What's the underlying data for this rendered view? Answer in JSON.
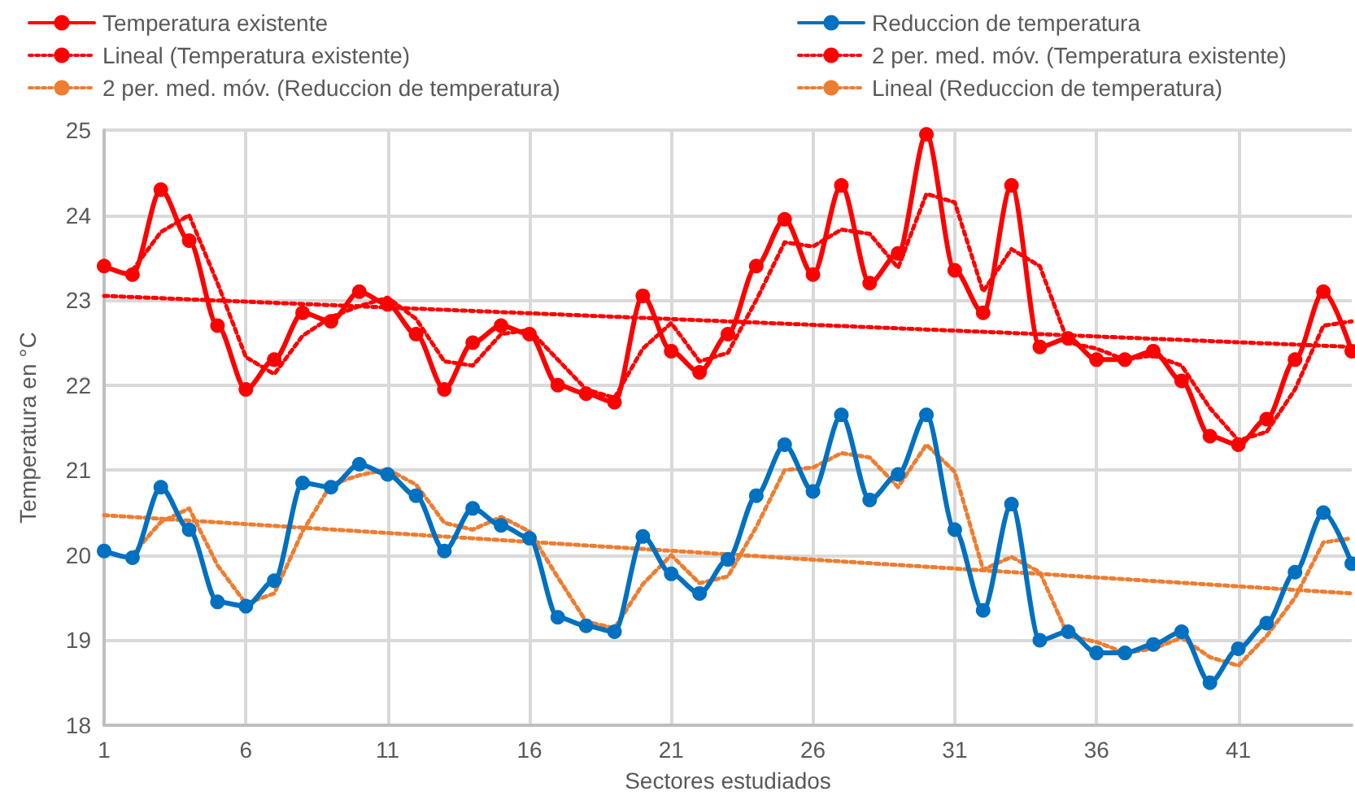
{
  "chart_data": {
    "type": "line",
    "xlabel": "Sectores estudiados",
    "ylabel": "Temperatura en °C",
    "xlim": [
      1,
      45
    ],
    "xticks": [
      1,
      6,
      11,
      16,
      21,
      26,
      31,
      36,
      41
    ],
    "ylim": [
      18,
      25
    ],
    "yticks": [
      18,
      19,
      20,
      21,
      22,
      23,
      24,
      25
    ],
    "grid": true,
    "legend": "top",
    "series": [
      {
        "name": "Temperatura existente",
        "color": "#ff0000",
        "marker": "circle",
        "line_style": "solid",
        "x": [
          1,
          2,
          3,
          4,
          5,
          6,
          7,
          8,
          9,
          10,
          11,
          12,
          13,
          14,
          15,
          16,
          17,
          18,
          19,
          20,
          21,
          22,
          23,
          24,
          25,
          26,
          27,
          28,
          29,
          30,
          31,
          32,
          33,
          34,
          35,
          36,
          37,
          38,
          39,
          40,
          41,
          42,
          43,
          44,
          45
        ],
        "values": [
          23.4,
          23.3,
          24.3,
          23.7,
          22.7,
          21.95,
          22.3,
          22.85,
          22.75,
          23.1,
          22.95,
          22.6,
          21.95,
          22.5,
          22.7,
          22.6,
          22.0,
          21.9,
          21.8,
          23.05,
          22.4,
          22.15,
          22.6,
          23.4,
          23.95,
          23.3,
          24.35,
          23.2,
          23.55,
          24.95,
          23.35,
          22.85,
          24.35,
          22.45,
          22.55,
          22.3,
          22.3,
          22.4,
          22.05,
          21.4,
          21.3,
          21.6,
          22.3,
          23.1,
          22.4
        ]
      },
      {
        "name": "Reduccion de temperatura",
        "color": "#0070c0",
        "marker": "circle",
        "line_style": "solid",
        "x": [
          1,
          2,
          3,
          4,
          5,
          6,
          7,
          8,
          9,
          10,
          11,
          12,
          13,
          14,
          15,
          16,
          17,
          18,
          19,
          20,
          21,
          22,
          23,
          24,
          25,
          26,
          27,
          28,
          29,
          30,
          31,
          32,
          33,
          34,
          35,
          36,
          37,
          38,
          39,
          40,
          41,
          42,
          43,
          44,
          45
        ],
        "values": [
          20.05,
          19.97,
          20.8,
          20.3,
          19.45,
          19.4,
          19.7,
          20.85,
          20.8,
          21.07,
          20.95,
          20.7,
          20.05,
          20.55,
          20.35,
          20.2,
          19.27,
          19.17,
          19.1,
          20.22,
          19.78,
          19.55,
          19.95,
          20.7,
          21.3,
          20.75,
          21.65,
          20.65,
          20.95,
          21.65,
          20.3,
          19.35,
          20.6,
          19.0,
          19.1,
          18.85,
          18.85,
          18.95,
          19.1,
          18.5,
          18.9,
          19.2,
          19.8,
          20.5,
          19.9
        ]
      },
      {
        "name": "Lineal (Temperatura existente)",
        "color": "#ff0000",
        "marker": "none",
        "line_style": "dotted",
        "x": [
          1,
          45
        ],
        "values": [
          23.05,
          22.45
        ]
      },
      {
        "name": "2 per. med. móv. (Temperatura existente)",
        "color": "#ff0000",
        "marker": "none",
        "line_style": "dotted",
        "x": [
          2,
          3,
          4,
          5,
          6,
          7,
          8,
          9,
          10,
          11,
          12,
          13,
          14,
          15,
          16,
          17,
          18,
          19,
          20,
          21,
          22,
          23,
          24,
          25,
          26,
          27,
          28,
          29,
          30,
          31,
          32,
          33,
          34,
          35,
          36,
          37,
          38,
          39,
          40,
          41,
          42,
          43,
          44,
          45
        ],
        "values": [
          23.35,
          23.8,
          24.0,
          23.2,
          22.33,
          22.13,
          22.58,
          22.8,
          22.93,
          23.03,
          22.78,
          22.28,
          22.23,
          22.6,
          22.65,
          22.3,
          21.95,
          21.85,
          22.43,
          22.73,
          22.28,
          22.38,
          23.0,
          23.68,
          23.63,
          23.83,
          23.78,
          23.38,
          24.25,
          24.15,
          23.1,
          23.6,
          23.4,
          22.5,
          22.43,
          22.3,
          22.35,
          22.23,
          21.73,
          21.35,
          21.45,
          21.95,
          22.7,
          22.75
        ]
      },
      {
        "name": "2 per. med. móv. (Reduccion de temperatura)",
        "color": "#ed7d31",
        "marker": "none",
        "line_style": "dotted",
        "x": [
          2,
          3,
          4,
          5,
          6,
          7,
          8,
          9,
          10,
          11,
          12,
          13,
          14,
          15,
          16,
          17,
          18,
          19,
          20,
          21,
          22,
          23,
          24,
          25,
          26,
          27,
          28,
          29,
          30,
          31,
          32,
          33,
          34,
          35,
          36,
          37,
          38,
          39,
          40,
          41,
          42,
          43,
          44,
          45
        ],
        "values": [
          20.01,
          20.39,
          20.55,
          19.88,
          19.43,
          19.55,
          20.28,
          20.83,
          20.94,
          21.01,
          20.83,
          20.38,
          20.3,
          20.45,
          20.28,
          19.74,
          19.22,
          19.14,
          19.66,
          20.0,
          19.67,
          19.75,
          20.33,
          21.0,
          21.03,
          21.2,
          21.15,
          20.8,
          21.3,
          20.98,
          19.83,
          19.98,
          19.8,
          19.05,
          18.98,
          18.85,
          18.9,
          19.03,
          18.8,
          18.7,
          19.05,
          19.5,
          20.15,
          20.2
        ]
      },
      {
        "name": "Lineal (Reduccion de temperatura)",
        "color": "#ed7d31",
        "marker": "none",
        "line_style": "dotted",
        "x": [
          1,
          45
        ],
        "values": [
          20.47,
          19.55
        ]
      }
    ]
  }
}
